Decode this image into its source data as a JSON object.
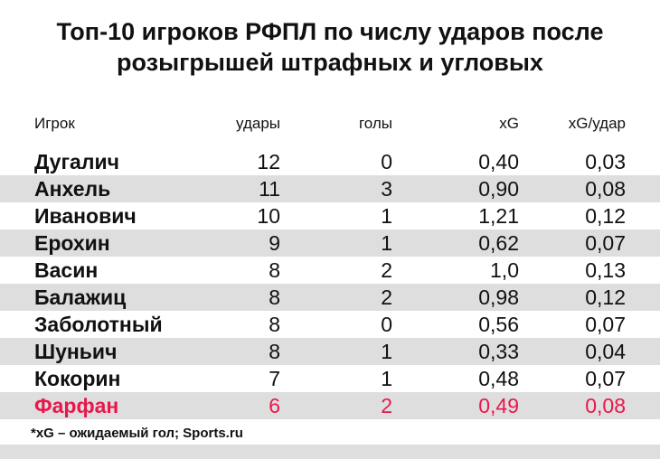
{
  "title": {
    "line1": "Топ-10 игроков РФПЛ по числу ударов после",
    "line2": "розыгрышей штрафных и угловых"
  },
  "highlight_color": "#e8174b",
  "chart_data": {
    "type": "table",
    "columns": [
      "Игрок",
      "удары",
      "голы",
      "xG",
      "xG/удар"
    ],
    "rows": [
      {
        "player": "Дугалич",
        "shots": "12",
        "goals": "0",
        "xg": "0,40",
        "xg_per_shot": "0,03",
        "highlight": false
      },
      {
        "player": "Анхель",
        "shots": "11",
        "goals": "3",
        "xg": "0,90",
        "xg_per_shot": "0,08",
        "highlight": false
      },
      {
        "player": "Иванович",
        "shots": "10",
        "goals": "1",
        "xg": "1,21",
        "xg_per_shot": "0,12",
        "highlight": false
      },
      {
        "player": "Ерохин",
        "shots": "9",
        "goals": "1",
        "xg": "0,62",
        "xg_per_shot": "0,07",
        "highlight": false
      },
      {
        "player": "Васин",
        "shots": "8",
        "goals": "2",
        "xg": "1,0",
        "xg_per_shot": "0,13",
        "highlight": false
      },
      {
        "player": "Балажиц",
        "shots": "8",
        "goals": "2",
        "xg": "0,98",
        "xg_per_shot": "0,12",
        "highlight": false
      },
      {
        "player": "Заболотный",
        "shots": "8",
        "goals": "0",
        "xg": "0,56",
        "xg_per_shot": "0,07",
        "highlight": false
      },
      {
        "player": "Шуньич",
        "shots": "8",
        "goals": "1",
        "xg": "0,33",
        "xg_per_shot": "0,04",
        "highlight": false
      },
      {
        "player": "Кокорин",
        "shots": "7",
        "goals": "1",
        "xg": "0,48",
        "xg_per_shot": "0,07",
        "highlight": false
      },
      {
        "player": "Фарфан",
        "shots": "6",
        "goals": "2",
        "xg": "0,49",
        "xg_per_shot": "0,08",
        "highlight": true
      }
    ]
  },
  "footnote": "*xG – ожидаемый гол; Sports.ru"
}
